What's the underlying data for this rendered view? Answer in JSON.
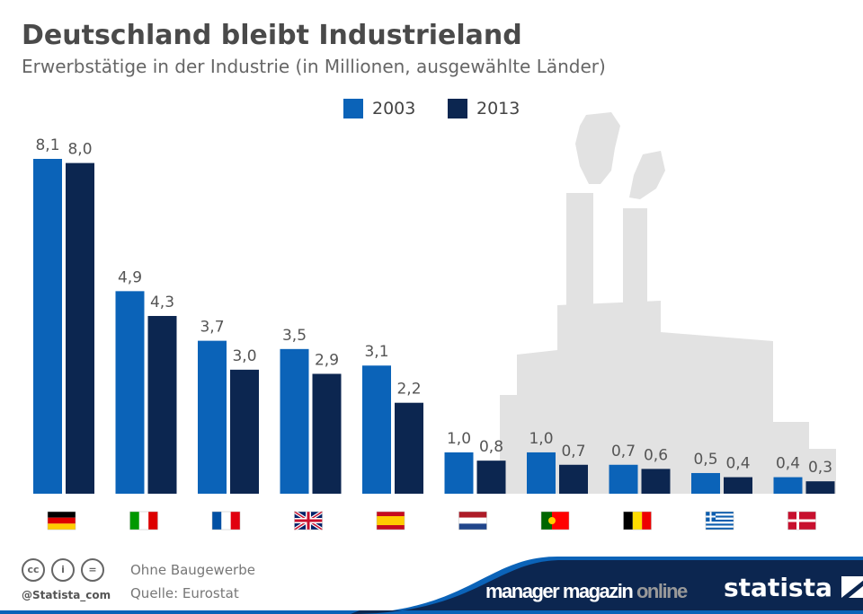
{
  "header": {
    "title": "Deutschland bleibt Industrieland",
    "subtitle": "Erwerbstätige in der Industrie (in Millionen, ausgewählte Länder)"
  },
  "chart_data": {
    "type": "bar",
    "title": "Deutschland bleibt Industrieland",
    "subtitle": "Erwerbstätige in der Industrie (in Millionen, ausgewählte Länder)",
    "categories": [
      "Germany",
      "Italy",
      "France",
      "United Kingdom",
      "Spain",
      "Netherlands",
      "Portugal",
      "Belgium",
      "Greece",
      "Denmark"
    ],
    "category_display": "flag icons",
    "series": [
      {
        "name": "2003",
        "color": "#0b63b8",
        "values": [
          8.1,
          4.9,
          3.7,
          3.5,
          3.1,
          1.0,
          1.0,
          0.7,
          0.5,
          0.4
        ]
      },
      {
        "name": "2013",
        "color": "#0c2650",
        "values": [
          8.0,
          4.3,
          3.0,
          2.9,
          2.2,
          0.8,
          0.7,
          0.6,
          0.4,
          0.3
        ]
      }
    ],
    "ylim": [
      0,
      8.1
    ],
    "grid": false,
    "legend": "top-center",
    "data_labels": true,
    "decimal_separator": ","
  },
  "footer": {
    "note": "Ohne Baugewerbe",
    "source": "Quelle: Eurostat",
    "handle": "@Statista_com",
    "partner_a": "manager magazin",
    "partner_b": "online",
    "brand": "statista",
    "cc": [
      "cc",
      "i",
      "="
    ]
  }
}
